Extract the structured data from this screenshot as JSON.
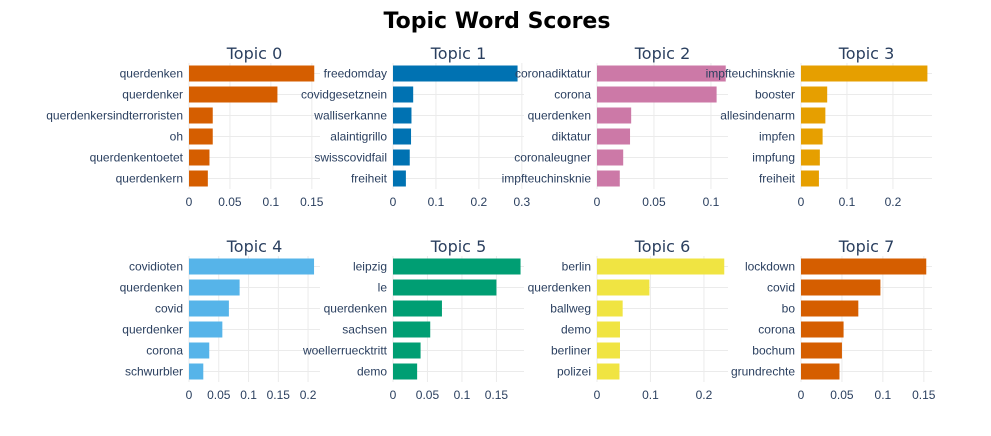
{
  "chart_data": {
    "type": "bar",
    "title": "Topic Word Scores",
    "grid": true,
    "panels": [
      {
        "subtitle": "Topic 0",
        "color": "#D55E00",
        "words": [
          "querdenken",
          "querdenker",
          "querdenkersindterroristen",
          "oh",
          "querdenkentoetet",
          "querdenkern"
        ],
        "values": [
          0.153,
          0.108,
          0.029,
          0.029,
          0.025,
          0.023
        ],
        "xlim": [
          0,
          0.16
        ],
        "ticks": [
          0,
          0.05,
          0.1,
          0.15
        ],
        "tick_labels": [
          "0",
          "0.05",
          "0.1",
          "0.15"
        ]
      },
      {
        "subtitle": "Topic 1",
        "color": "#0072B2",
        "words": [
          "freedomday",
          "covidgesetznein",
          "walliserkanne",
          "alaintigrillo",
          "swisscovidfail",
          "freiheit"
        ],
        "values": [
          0.29,
          0.047,
          0.043,
          0.042,
          0.039,
          0.03
        ],
        "xlim": [
          0,
          0.305
        ],
        "ticks": [
          0,
          0.1,
          0.2,
          0.3
        ],
        "tick_labels": [
          "0",
          "0.1",
          "0.2",
          "0.3"
        ]
      },
      {
        "subtitle": "Topic 2",
        "color": "#CC79A7",
        "words": [
          "coronadiktatur",
          "corona",
          "querdenken",
          "diktatur",
          "coronaleugner",
          "impfteuchinsknie"
        ],
        "values": [
          0.113,
          0.105,
          0.03,
          0.029,
          0.023,
          0.02
        ],
        "xlim": [
          0,
          0.115
        ],
        "ticks": [
          0,
          0.05,
          0.1
        ],
        "tick_labels": [
          "0",
          "0.05",
          "0.1"
        ]
      },
      {
        "subtitle": "Topic 3",
        "color": "#E69F00",
        "words": [
          "impfteuchinsknie",
          "booster",
          "allesindenarm",
          "impfen",
          "impfung",
          "freiheit"
        ],
        "values": [
          0.275,
          0.057,
          0.053,
          0.047,
          0.041,
          0.039
        ],
        "xlim": [
          0,
          0.285
        ],
        "ticks": [
          0,
          0.1,
          0.2
        ],
        "tick_labels": [
          "0",
          "0.1",
          "0.2"
        ]
      },
      {
        "subtitle": "Topic 4",
        "color": "#56B4E9",
        "words": [
          "covidioten",
          "querdenken",
          "covid",
          "querdenker",
          "corona",
          "schwurbler"
        ],
        "values": [
          0.21,
          0.085,
          0.067,
          0.056,
          0.034,
          0.024
        ],
        "xlim": [
          0,
          0.22
        ],
        "ticks": [
          0,
          0.05,
          0.1,
          0.15,
          0.2
        ],
        "tick_labels": [
          "0",
          "0.05",
          "0.1",
          "0.15",
          "0.2"
        ]
      },
      {
        "subtitle": "Topic 5",
        "color": "#009E73",
        "words": [
          "leipzig",
          "le",
          "querdenken",
          "sachsen",
          "woellerruecktritt",
          "demo"
        ],
        "values": [
          0.185,
          0.15,
          0.071,
          0.054,
          0.04,
          0.035
        ],
        "xlim": [
          0,
          0.19
        ],
        "ticks": [
          0,
          0.05,
          0.1,
          0.15
        ],
        "tick_labels": [
          "0",
          "0.05",
          "0.1",
          "0.15"
        ]
      },
      {
        "subtitle": "Topic 6",
        "color": "#F0E442",
        "words": [
          "berlin",
          "querdenken",
          "ballweg",
          "demo",
          "berliner",
          "polizei"
        ],
        "values": [
          0.238,
          0.098,
          0.048,
          0.043,
          0.043,
          0.042
        ],
        "xlim": [
          0,
          0.245
        ],
        "ticks": [
          0,
          0.1,
          0.2
        ],
        "tick_labels": [
          "0",
          "0.1",
          "0.2"
        ]
      },
      {
        "subtitle": "Topic 7",
        "color": "#D55E00",
        "words": [
          "lockdown",
          "covid",
          "bo",
          "corona",
          "bochum",
          "grundrechte"
        ],
        "values": [
          0.153,
          0.097,
          0.07,
          0.052,
          0.05,
          0.047
        ],
        "xlim": [
          0,
          0.16
        ],
        "ticks": [
          0,
          0.05,
          0.1,
          0.15
        ],
        "tick_labels": [
          "0",
          "0.05",
          "0.1",
          "0.15"
        ]
      }
    ]
  }
}
